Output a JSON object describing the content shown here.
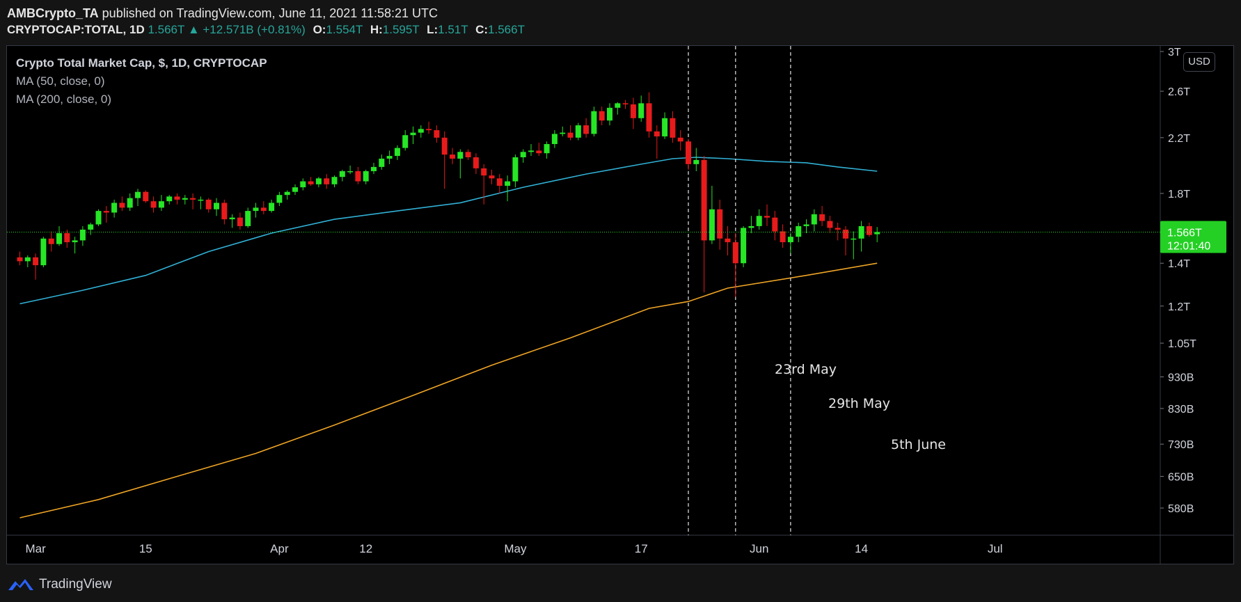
{
  "header": {
    "line1": {
      "author": "AMBCrypto_TA",
      "rest": " published on TradingView.com, June 11, 2021 11:58:21 UTC"
    },
    "line2": {
      "symbol": "CRYPTOCAP:TOTAL, 1D",
      "last": "1.566T",
      "change_arrow": "▲",
      "change": "+12.571B (+0.81%)",
      "o_label": "O:",
      "o": "1.554T",
      "h_label": "H:",
      "h": "1.595T",
      "l_label": "L:",
      "l": "1.51T",
      "c_label": "C:",
      "c": "1.566T"
    }
  },
  "legend": {
    "title": "Crypto Total Market Cap, $, 1D, CRYPTOCAP",
    "ma1": "MA (50, close, 0)",
    "ma2": "MA (200, close, 0)"
  },
  "price_scale": {
    "currency": "USD",
    "last_price": "1.566T",
    "countdown": "12:01:40"
  },
  "annotations": {
    "a1": "23rd May",
    "a2": "29th May",
    "a3": "5th June"
  },
  "footer": {
    "brand": "TradingView"
  },
  "colors": {
    "up": "#26e626",
    "down": "#e81b1b",
    "ma50": "#31b1d6",
    "ma200": "#f0a526",
    "background": "#000000",
    "grid_text": "#d1d4dc",
    "last_price_bg": "#24d024"
  },
  "chart_data": {
    "type": "candlestick",
    "title": "Crypto Total Market Cap, $, 1D, CRYPTOCAP",
    "y_scale": "log",
    "ylim": [
      550,
      3000
    ],
    "y_unit": "B",
    "y_ticks": [
      {
        "label": "3T",
        "value": 3000
      },
      {
        "label": "2.6T",
        "value": 2600
      },
      {
        "label": "2.2T",
        "value": 2200
      },
      {
        "label": "1.8T",
        "value": 1800
      },
      {
        "label": "1.4T",
        "value": 1400
      },
      {
        "label": "1.2T",
        "value": 1200
      },
      {
        "label": "1.05T",
        "value": 1050
      },
      {
        "label": "930B",
        "value": 930
      },
      {
        "label": "830B",
        "value": 830
      },
      {
        "label": "730B",
        "value": 730
      },
      {
        "label": "650B",
        "value": 650
      },
      {
        "label": "580B",
        "value": 580
      }
    ],
    "x_ticks": [
      {
        "label": "Mar",
        "day": 2
      },
      {
        "label": "15",
        "day": 16
      },
      {
        "label": "Apr",
        "day": 33
      },
      {
        "label": "12",
        "day": 44
      },
      {
        "label": "May",
        "day": 63
      },
      {
        "label": "17",
        "day": 79
      },
      {
        "label": "Jun",
        "day": 94
      },
      {
        "label": "14",
        "day": 107
      },
      {
        "label": "Jul",
        "day": 124
      }
    ],
    "x_range_days": [
      0,
      129
    ],
    "x_origin": "Feb 28, 2021 (day 0)",
    "vlines": [
      {
        "day": 85,
        "label": "23rd May"
      },
      {
        "day": 91,
        "label": "29th May"
      },
      {
        "day": 98,
        "label": "5th June"
      }
    ],
    "last_price": 1566,
    "candles": [
      {
        "day": 0,
        "o": 1430,
        "h": 1460,
        "l": 1390,
        "c": 1410
      },
      {
        "day": 1,
        "o": 1410,
        "h": 1440,
        "l": 1380,
        "c": 1430
      },
      {
        "day": 2,
        "o": 1430,
        "h": 1450,
        "l": 1320,
        "c": 1390
      },
      {
        "day": 3,
        "o": 1390,
        "h": 1540,
        "l": 1380,
        "c": 1530
      },
      {
        "day": 4,
        "o": 1530,
        "h": 1570,
        "l": 1460,
        "c": 1500
      },
      {
        "day": 5,
        "o": 1500,
        "h": 1600,
        "l": 1490,
        "c": 1560
      },
      {
        "day": 6,
        "o": 1560,
        "h": 1580,
        "l": 1480,
        "c": 1510
      },
      {
        "day": 7,
        "o": 1510,
        "h": 1540,
        "l": 1450,
        "c": 1520
      },
      {
        "day": 8,
        "o": 1520,
        "h": 1600,
        "l": 1490,
        "c": 1580
      },
      {
        "day": 9,
        "o": 1580,
        "h": 1620,
        "l": 1550,
        "c": 1610
      },
      {
        "day": 10,
        "o": 1610,
        "h": 1700,
        "l": 1600,
        "c": 1690
      },
      {
        "day": 11,
        "o": 1690,
        "h": 1720,
        "l": 1620,
        "c": 1680
      },
      {
        "day": 12,
        "o": 1680,
        "h": 1760,
        "l": 1650,
        "c": 1740
      },
      {
        "day": 13,
        "o": 1740,
        "h": 1780,
        "l": 1690,
        "c": 1710
      },
      {
        "day": 14,
        "o": 1710,
        "h": 1800,
        "l": 1690,
        "c": 1770
      },
      {
        "day": 15,
        "o": 1770,
        "h": 1830,
        "l": 1720,
        "c": 1810
      },
      {
        "day": 16,
        "o": 1810,
        "h": 1820,
        "l": 1740,
        "c": 1750
      },
      {
        "day": 17,
        "o": 1750,
        "h": 1780,
        "l": 1680,
        "c": 1710
      },
      {
        "day": 18,
        "o": 1710,
        "h": 1790,
        "l": 1690,
        "c": 1750
      },
      {
        "day": 19,
        "o": 1750,
        "h": 1790,
        "l": 1730,
        "c": 1780
      },
      {
        "day": 20,
        "o": 1780,
        "h": 1800,
        "l": 1730,
        "c": 1760
      },
      {
        "day": 21,
        "o": 1760,
        "h": 1790,
        "l": 1730,
        "c": 1770
      },
      {
        "day": 22,
        "o": 1770,
        "h": 1800,
        "l": 1700,
        "c": 1760
      },
      {
        "day": 23,
        "o": 1760,
        "h": 1780,
        "l": 1700,
        "c": 1760
      },
      {
        "day": 24,
        "o": 1760,
        "h": 1770,
        "l": 1680,
        "c": 1700
      },
      {
        "day": 25,
        "o": 1700,
        "h": 1770,
        "l": 1660,
        "c": 1740
      },
      {
        "day": 26,
        "o": 1740,
        "h": 1760,
        "l": 1610,
        "c": 1640
      },
      {
        "day": 27,
        "o": 1640,
        "h": 1670,
        "l": 1590,
        "c": 1650
      },
      {
        "day": 28,
        "o": 1650,
        "h": 1680,
        "l": 1580,
        "c": 1600
      },
      {
        "day": 29,
        "o": 1600,
        "h": 1710,
        "l": 1590,
        "c": 1690
      },
      {
        "day": 30,
        "o": 1690,
        "h": 1740,
        "l": 1650,
        "c": 1710
      },
      {
        "day": 31,
        "o": 1710,
        "h": 1750,
        "l": 1670,
        "c": 1690
      },
      {
        "day": 32,
        "o": 1690,
        "h": 1760,
        "l": 1680,
        "c": 1740
      },
      {
        "day": 33,
        "o": 1740,
        "h": 1810,
        "l": 1720,
        "c": 1790
      },
      {
        "day": 34,
        "o": 1790,
        "h": 1820,
        "l": 1760,
        "c": 1810
      },
      {
        "day": 35,
        "o": 1810,
        "h": 1860,
        "l": 1790,
        "c": 1840
      },
      {
        "day": 36,
        "o": 1840,
        "h": 1900,
        "l": 1820,
        "c": 1880
      },
      {
        "day": 37,
        "o": 1880,
        "h": 1910,
        "l": 1850,
        "c": 1860
      },
      {
        "day": 38,
        "o": 1860,
        "h": 1910,
        "l": 1840,
        "c": 1900
      },
      {
        "day": 39,
        "o": 1900,
        "h": 1930,
        "l": 1830,
        "c": 1860
      },
      {
        "day": 40,
        "o": 1860,
        "h": 1920,
        "l": 1840,
        "c": 1910
      },
      {
        "day": 41,
        "o": 1910,
        "h": 1960,
        "l": 1880,
        "c": 1950
      },
      {
        "day": 42,
        "o": 1950,
        "h": 1990,
        "l": 1930,
        "c": 1950
      },
      {
        "day": 43,
        "o": 1950,
        "h": 1980,
        "l": 1860,
        "c": 1880
      },
      {
        "day": 44,
        "o": 1880,
        "h": 1960,
        "l": 1860,
        "c": 1950
      },
      {
        "day": 45,
        "o": 1950,
        "h": 2010,
        "l": 1930,
        "c": 1980
      },
      {
        "day": 46,
        "o": 1980,
        "h": 2070,
        "l": 1960,
        "c": 2040
      },
      {
        "day": 47,
        "o": 2040,
        "h": 2100,
        "l": 2000,
        "c": 2060
      },
      {
        "day": 48,
        "o": 2060,
        "h": 2140,
        "l": 2030,
        "c": 2120
      },
      {
        "day": 49,
        "o": 2120,
        "h": 2260,
        "l": 2100,
        "c": 2220
      },
      {
        "day": 50,
        "o": 2220,
        "h": 2290,
        "l": 2150,
        "c": 2240
      },
      {
        "day": 51,
        "o": 2240,
        "h": 2300,
        "l": 2200,
        "c": 2270
      },
      {
        "day": 52,
        "o": 2270,
        "h": 2330,
        "l": 2230,
        "c": 2260
      },
      {
        "day": 53,
        "o": 2260,
        "h": 2300,
        "l": 2160,
        "c": 2200
      },
      {
        "day": 54,
        "o": 2200,
        "h": 2250,
        "l": 1830,
        "c": 2070
      },
      {
        "day": 55,
        "o": 2070,
        "h": 2120,
        "l": 2000,
        "c": 2040
      },
      {
        "day": 56,
        "o": 2040,
        "h": 2110,
        "l": 1900,
        "c": 2090
      },
      {
        "day": 57,
        "o": 2090,
        "h": 2110,
        "l": 2030,
        "c": 2050
      },
      {
        "day": 58,
        "o": 2050,
        "h": 2080,
        "l": 1930,
        "c": 1970
      },
      {
        "day": 59,
        "o": 1970,
        "h": 2000,
        "l": 1730,
        "c": 1920
      },
      {
        "day": 60,
        "o": 1920,
        "h": 1960,
        "l": 1860,
        "c": 1900
      },
      {
        "day": 61,
        "o": 1900,
        "h": 1930,
        "l": 1800,
        "c": 1850
      },
      {
        "day": 62,
        "o": 1850,
        "h": 1920,
        "l": 1750,
        "c": 1880
      },
      {
        "day": 63,
        "o": 1880,
        "h": 2070,
        "l": 1840,
        "c": 2050
      },
      {
        "day": 64,
        "o": 2050,
        "h": 2110,
        "l": 2010,
        "c": 2090
      },
      {
        "day": 65,
        "o": 2090,
        "h": 2150,
        "l": 2060,
        "c": 2100
      },
      {
        "day": 66,
        "o": 2100,
        "h": 2160,
        "l": 2060,
        "c": 2080
      },
      {
        "day": 67,
        "o": 2080,
        "h": 2170,
        "l": 2040,
        "c": 2150
      },
      {
        "day": 68,
        "o": 2150,
        "h": 2260,
        "l": 2120,
        "c": 2230
      },
      {
        "day": 69,
        "o": 2230,
        "h": 2290,
        "l": 2210,
        "c": 2240
      },
      {
        "day": 70,
        "o": 2240,
        "h": 2300,
        "l": 2180,
        "c": 2200
      },
      {
        "day": 71,
        "o": 2200,
        "h": 2320,
        "l": 2180,
        "c": 2300
      },
      {
        "day": 72,
        "o": 2300,
        "h": 2360,
        "l": 2200,
        "c": 2230
      },
      {
        "day": 73,
        "o": 2230,
        "h": 2460,
        "l": 2210,
        "c": 2420
      },
      {
        "day": 74,
        "o": 2420,
        "h": 2460,
        "l": 2300,
        "c": 2340
      },
      {
        "day": 75,
        "o": 2340,
        "h": 2490,
        "l": 2300,
        "c": 2450
      },
      {
        "day": 76,
        "o": 2450,
        "h": 2500,
        "l": 2390,
        "c": 2490
      },
      {
        "day": 77,
        "o": 2490,
        "h": 2520,
        "l": 2440,
        "c": 2480
      },
      {
        "day": 78,
        "o": 2480,
        "h": 2540,
        "l": 2270,
        "c": 2360
      },
      {
        "day": 79,
        "o": 2360,
        "h": 2560,
        "l": 2330,
        "c": 2490
      },
      {
        "day": 80,
        "o": 2490,
        "h": 2590,
        "l": 2200,
        "c": 2250
      },
      {
        "day": 81,
        "o": 2250,
        "h": 2300,
        "l": 2040,
        "c": 2210
      },
      {
        "day": 82,
        "o": 2210,
        "h": 2410,
        "l": 2190,
        "c": 2360
      },
      {
        "day": 83,
        "o": 2360,
        "h": 2420,
        "l": 2160,
        "c": 2200
      },
      {
        "day": 84,
        "o": 2200,
        "h": 2260,
        "l": 2100,
        "c": 2170
      },
      {
        "day": 85,
        "o": 2170,
        "h": 2190,
        "l": 1960,
        "c": 2000
      },
      {
        "day": 86,
        "o": 2000,
        "h": 2120,
        "l": 1950,
        "c": 2030
      },
      {
        "day": 87,
        "o": 2030,
        "h": 2060,
        "l": 1260,
        "c": 1520
      },
      {
        "day": 88,
        "o": 1520,
        "h": 1850,
        "l": 1500,
        "c": 1700
      },
      {
        "day": 89,
        "o": 1700,
        "h": 1760,
        "l": 1470,
        "c": 1530
      },
      {
        "day": 90,
        "o": 1530,
        "h": 1600,
        "l": 1440,
        "c": 1510
      },
      {
        "day": 91,
        "o": 1510,
        "h": 1560,
        "l": 1240,
        "c": 1400
      },
      {
        "day": 92,
        "o": 1400,
        "h": 1600,
        "l": 1380,
        "c": 1590
      },
      {
        "day": 93,
        "o": 1590,
        "h": 1660,
        "l": 1560,
        "c": 1600
      },
      {
        "day": 94,
        "o": 1600,
        "h": 1700,
        "l": 1580,
        "c": 1660
      },
      {
        "day": 95,
        "o": 1660,
        "h": 1730,
        "l": 1600,
        "c": 1650
      },
      {
        "day": 96,
        "o": 1650,
        "h": 1690,
        "l": 1520,
        "c": 1570
      },
      {
        "day": 97,
        "o": 1570,
        "h": 1610,
        "l": 1480,
        "c": 1510
      },
      {
        "day": 98,
        "o": 1510,
        "h": 1560,
        "l": 1450,
        "c": 1540
      },
      {
        "day": 99,
        "o": 1540,
        "h": 1620,
        "l": 1510,
        "c": 1600
      },
      {
        "day": 100,
        "o": 1600,
        "h": 1640,
        "l": 1560,
        "c": 1610
      },
      {
        "day": 101,
        "o": 1610,
        "h": 1700,
        "l": 1570,
        "c": 1670
      },
      {
        "day": 102,
        "o": 1670,
        "h": 1720,
        "l": 1600,
        "c": 1630
      },
      {
        "day": 103,
        "o": 1630,
        "h": 1660,
        "l": 1560,
        "c": 1590
      },
      {
        "day": 104,
        "o": 1590,
        "h": 1620,
        "l": 1520,
        "c": 1580
      },
      {
        "day": 105,
        "o": 1580,
        "h": 1600,
        "l": 1440,
        "c": 1530
      },
      {
        "day": 106,
        "o": 1530,
        "h": 1570,
        "l": 1420,
        "c": 1530
      },
      {
        "day": 107,
        "o": 1530,
        "h": 1630,
        "l": 1460,
        "c": 1600
      },
      {
        "day": 108,
        "o": 1600,
        "h": 1620,
        "l": 1540,
        "c": 1550
      },
      {
        "day": 109,
        "o": 1554,
        "h": 1595,
        "l": 1510,
        "c": 1566
      }
    ],
    "series": [
      {
        "name": "MA (50, close, 0)",
        "points": [
          [
            0,
            1210
          ],
          [
            8,
            1270
          ],
          [
            16,
            1340
          ],
          [
            24,
            1460
          ],
          [
            32,
            1560
          ],
          [
            40,
            1640
          ],
          [
            48,
            1690
          ],
          [
            56,
            1740
          ],
          [
            64,
            1840
          ],
          [
            72,
            1930
          ],
          [
            79,
            2000
          ],
          [
            83,
            2040
          ],
          [
            86,
            2050
          ],
          [
            90,
            2040
          ],
          [
            95,
            2020
          ],
          [
            100,
            2010
          ],
          [
            104,
            1980
          ],
          [
            109,
            1950
          ]
        ]
      },
      {
        "name": "MA (200, close, 0)",
        "points": [
          [
            0,
            560
          ],
          [
            10,
            598
          ],
          [
            20,
            650
          ],
          [
            30,
            706
          ],
          [
            40,
            782
          ],
          [
            50,
            870
          ],
          [
            60,
            970
          ],
          [
            70,
            1070
          ],
          [
            80,
            1190
          ],
          [
            85,
            1220
          ],
          [
            90,
            1280
          ],
          [
            100,
            1340
          ],
          [
            109,
            1400
          ]
        ]
      }
    ]
  }
}
